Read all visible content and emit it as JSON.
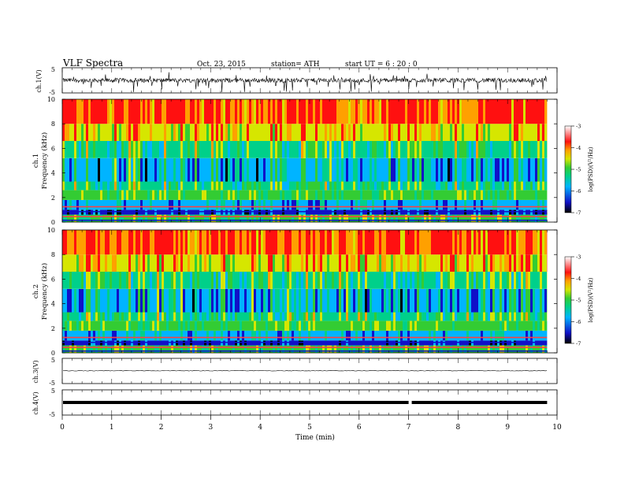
{
  "header": {
    "title": "VLF  Spectra",
    "date": "Oct. 23, 2015",
    "station": "station= ATH",
    "start": "start  UT  =   6  : 20 : 0"
  },
  "colors": {
    "spectrum_scale": [
      "#000000",
      "#1010c8",
      "#00b4ff",
      "#00d08a",
      "#33cc33",
      "#d6e600",
      "#ffa000",
      "#ff1010",
      "#ffffff"
    ]
  },
  "chart_data": [
    {
      "type": "line",
      "name": "ch1_waveform",
      "ylabel": "ch.1(V)",
      "ylim": [
        -5,
        5
      ],
      "yticks": [
        "5",
        "-5"
      ],
      "xlim": [
        0,
        10
      ],
      "baseline": 0,
      "amplitude": "noisy, approx ±1.5 V with spikes to -5"
    },
    {
      "type": "heatmap",
      "name": "ch1_spectrogram",
      "ylabel_channel": "ch.1",
      "ylabel": "Frequency  (kHz)",
      "ylim": [
        0,
        10
      ],
      "yticks": [
        "0",
        "2",
        "4",
        "6",
        "8",
        "10"
      ],
      "xlim": [
        0,
        9.8
      ],
      "colorbar": {
        "label": "log(PSD)(V²/Hz)",
        "range": [
          -7,
          -3
        ],
        "ticks": [
          "-3",
          "-4",
          "-5",
          "-6",
          "-7"
        ]
      }
    },
    {
      "type": "heatmap",
      "name": "ch2_spectrogram",
      "ylabel_channel": "ch.2",
      "ylabel": "Frequency  (kHz)",
      "ylim": [
        0,
        10
      ],
      "yticks": [
        "0",
        "2",
        "4",
        "6",
        "8",
        "10"
      ],
      "xlim": [
        0,
        9.8
      ],
      "colorbar": {
        "label": "log(PSD)(V²/Hz)",
        "range": [
          -7,
          -3
        ],
        "ticks": [
          "-3",
          "-4",
          "-5",
          "-6",
          "-7"
        ]
      }
    },
    {
      "type": "line",
      "name": "ch3_waveform",
      "ylabel": "ch.3(V)",
      "ylim": [
        -5,
        5
      ],
      "yticks": [
        "5",
        "-5"
      ],
      "xlim": [
        0,
        10
      ],
      "baseline": 0
    },
    {
      "type": "line",
      "name": "ch4_waveform",
      "ylabel": "ch.4(V)",
      "ylim": [
        -5,
        5
      ],
      "yticks": [
        "5",
        "-5"
      ],
      "xlim": [
        0,
        10
      ],
      "baseline": 0,
      "gap_at_min": 7.0,
      "xlabel": "Time  (min)",
      "xticks": [
        "0",
        "1",
        "2",
        "3",
        "4",
        "5",
        "6",
        "7",
        "8",
        "9",
        "10"
      ]
    }
  ]
}
